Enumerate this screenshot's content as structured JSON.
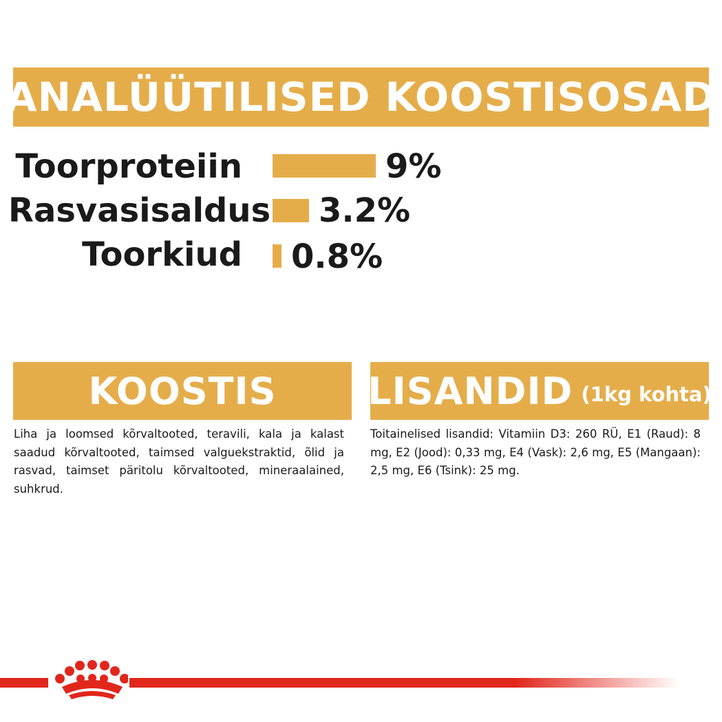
{
  "header": {
    "title": "ANALÜÜTILISED KOOSTISOSAD"
  },
  "analytics": [
    {
      "label": "Toorproteiin",
      "value": "9%",
      "fraction": 1.0
    },
    {
      "label": "Rasvasisaldus",
      "value": "3.2%",
      "fraction": 0.356
    },
    {
      "label": "Toorkiud",
      "value": "0.8%",
      "fraction": 0.089
    }
  ],
  "composition": {
    "title": "KOOSTIS",
    "text": "Liha ja loomsed kõrvaltooted, teravili, kala ja kalast saadud kõrvaltooted, taimsed valguekstraktid, õlid ja rasvad, taimset päritolu kõrvaltooted, mineraalained, suhkrud."
  },
  "additives": {
    "title": "LISANDID",
    "subtitle": "(1kg kohta)",
    "text": "Toitainelised lisandid: Vitamiin D3: 260 RÜ, E1 (Raud): 8 mg, E2 (Jood): 0,33 mg, E4 (Vask): 2,6 mg, E5 (Mangaan): 2,5 mg, E6 (Tsink): 25 mg."
  },
  "colors": {
    "accent": "#e5ad4a",
    "brand_red": "#e1261c"
  },
  "icons": {
    "logo": "royal-canin-crown-icon"
  }
}
